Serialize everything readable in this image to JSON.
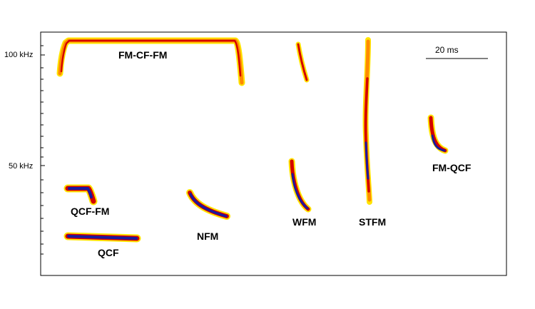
{
  "axis": {
    "y_ticks": [
      "100 kHz",
      "50 kHz"
    ]
  },
  "scale_bar": {
    "label": "20 ms"
  },
  "calls": [
    {
      "id": "fm-cf-fm",
      "label": "FM-CF-FM"
    },
    {
      "id": "qcf-fm",
      "label": "QCF-FM"
    },
    {
      "id": "qcf",
      "label": "QCF"
    },
    {
      "id": "nfm",
      "label": "NFM"
    },
    {
      "id": "wfm",
      "label": "WFM"
    },
    {
      "id": "stfm",
      "label": "STFM"
    },
    {
      "id": "fm-qcf",
      "label": "FM-QCF"
    }
  ],
  "colors": {
    "outer": "#ffe400",
    "mid": "#ff8a00",
    "core": "#d40000",
    "deep": "#1a1a9e"
  }
}
